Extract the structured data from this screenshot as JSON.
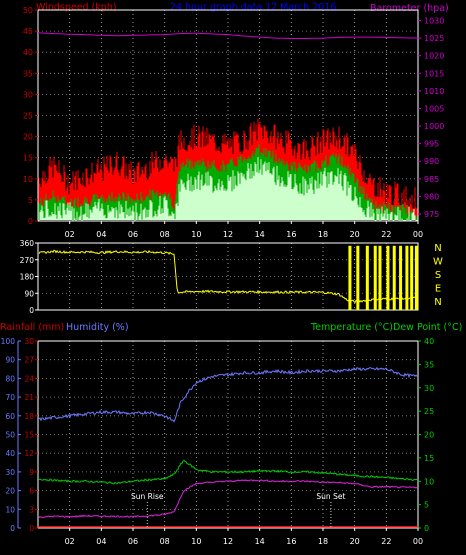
{
  "colors": {
    "wind_gust": "#ff0000",
    "wind_avg": "#00aa00",
    "wind_min": "#ccffcc",
    "baro": "#cc00cc",
    "wind_axis": "#cc0000",
    "baro_axis": "#cc00cc",
    "title": "#0000ff",
    "dir": "#ffff00",
    "humidity": "#6e78ff",
    "temp": "#00cc00",
    "dew": "#dd22dd",
    "rain": "#ff2222",
    "rain_axis": "#cc0000",
    "hum_axis": "#6e78ff",
    "temp_axis": "#00cc00",
    "white": "#ffffff"
  },
  "chart_data": [
    {
      "type": "line",
      "title": "24 hour graph data  12 March 2016",
      "ylabel_left": "Windspeed (kph)",
      "ylabel_right": "Barometer (hpa)",
      "x_ticks": [
        "02",
        "04",
        "06",
        "08",
        "10",
        "12",
        "14",
        "16",
        "18",
        "20",
        "22",
        "00"
      ],
      "x_range_hours": [
        0,
        24
      ],
      "y_left_ticks": [
        "0",
        "5",
        "10",
        "15",
        "20",
        "25",
        "30",
        "35",
        "40",
        "45",
        "50"
      ],
      "y_left_range": [
        0,
        50
      ],
      "y_right_ticks": [
        "975",
        "980",
        "985",
        "990",
        "995",
        "1000",
        "1005",
        "1010",
        "1015",
        "1020",
        "1025",
        "1030"
      ],
      "y_right_range": [
        973,
        1033
      ],
      "series": [
        {
          "key": "baro",
          "axis": "right",
          "x": [
            0,
            1,
            2,
            3,
            4,
            5,
            6,
            7,
            8,
            9,
            10,
            11,
            12,
            13,
            14,
            15,
            16,
            17,
            18,
            19,
            20,
            21,
            22,
            23,
            24
          ],
          "y": [
            1026.5,
            1026.3,
            1026.1,
            1026.0,
            1025.8,
            1025.7,
            1025.8,
            1025.9,
            1026.0,
            1026.3,
            1026.4,
            1026.2,
            1026.0,
            1025.6,
            1025.3,
            1025.0,
            1024.9,
            1024.9,
            1025.0,
            1025.2,
            1025.3,
            1025.3,
            1025.2,
            1025.1,
            1025.0
          ]
        },
        {
          "key": "wind_gust",
          "axis": "left",
          "x": [
            0,
            1,
            2,
            3,
            4,
            5,
            6,
            7,
            8,
            8.6,
            9,
            10,
            11,
            12,
            13,
            14,
            15,
            16,
            17,
            18,
            19,
            20,
            21,
            22,
            23,
            24
          ],
          "y": [
            10,
            13,
            9,
            11,
            12,
            14,
            11,
            13,
            15,
            13,
            19,
            20,
            19,
            18,
            19,
            22,
            20,
            18,
            17,
            19,
            20,
            16,
            9,
            7,
            6,
            5
          ]
        },
        {
          "key": "wind_avg",
          "axis": "left",
          "x": [
            0,
            1,
            2,
            3,
            4,
            5,
            6,
            7,
            8,
            8.6,
            9,
            10,
            11,
            12,
            13,
            14,
            15,
            16,
            17,
            18,
            19,
            20,
            21,
            22,
            23,
            24
          ],
          "y": [
            4,
            6,
            4,
            5,
            5,
            6,
            5,
            6,
            7,
            4,
            13,
            14,
            13,
            13,
            15,
            17,
            15,
            13,
            12,
            14,
            15,
            10,
            4,
            3,
            3,
            2
          ]
        },
        {
          "key": "wind_min",
          "axis": "left",
          "x": [
            0,
            1,
            2,
            3,
            4,
            5,
            6,
            7,
            8,
            8.6,
            9,
            10,
            11,
            12,
            13,
            14,
            15,
            16,
            17,
            18,
            19,
            20,
            21,
            22,
            23,
            24
          ],
          "y": [
            2,
            3,
            2,
            2,
            3,
            3,
            2,
            3,
            4,
            2,
            8,
            10,
            9,
            9,
            11,
            13,
            11,
            9,
            8,
            10,
            11,
            6,
            2,
            1,
            1,
            1
          ]
        }
      ]
    },
    {
      "type": "line",
      "x_ticks": [
        "02",
        "04",
        "06",
        "08",
        "10",
        "12",
        "14",
        "16",
        "18",
        "20",
        "22",
        "00"
      ],
      "y_left_ticks": [
        "0",
        "90",
        "180",
        "270",
        "360"
      ],
      "y_left_range": [
        0,
        360
      ],
      "y_right_labels": [
        "N",
        "W",
        "S",
        "E",
        "N"
      ],
      "series": [
        {
          "key": "dir",
          "x": [
            0,
            1,
            2,
            3,
            4,
            5,
            6,
            7,
            8,
            8.6,
            8.8,
            10,
            12,
            14,
            16,
            18,
            19,
            19.5,
            20,
            21,
            22,
            23,
            24
          ],
          "y": [
            305,
            315,
            310,
            312,
            308,
            314,
            310,
            312,
            308,
            300,
            95,
            100,
            98,
            97,
            96,
            95,
            85,
            55,
            45,
            55,
            60,
            60,
            65
          ]
        }
      ]
    },
    {
      "type": "line",
      "ylabel_rain": "Rainfall (mm)",
      "ylabel_humidity": "Humidity (%)",
      "ylabel_temp": "Temperature (°C)",
      "ylabel_dew": "Dew Point (°C)",
      "x_ticks": [
        "02",
        "04",
        "06",
        "08",
        "10",
        "12",
        "14",
        "16",
        "18",
        "20",
        "22",
        "00"
      ],
      "y_hum_ticks": [
        "0",
        "10",
        "20",
        "30",
        "40",
        "50",
        "60",
        "70",
        "80",
        "90",
        "100"
      ],
      "y_hum_range": [
        0,
        100
      ],
      "y_rain_ticks": [
        "0",
        "3",
        "6",
        "9",
        "12",
        "15",
        "18",
        "21",
        "24",
        "27",
        "30"
      ],
      "y_rain_range": [
        0,
        30
      ],
      "y_temp_ticks": [
        "0",
        "5",
        "10",
        "15",
        "20",
        "25",
        "30",
        "35",
        "40"
      ],
      "y_temp_range": [
        0,
        40
      ],
      "annotations": [
        {
          "label": "Sun Rise",
          "x": 6.9
        },
        {
          "label": "Sun Set",
          "x": 18.5
        }
      ],
      "series": [
        {
          "key": "humidity",
          "axis": "hum",
          "x": [
            0,
            1,
            2,
            3,
            4,
            5,
            6,
            7,
            8,
            8.6,
            9,
            9.5,
            10,
            11,
            12,
            13,
            14,
            15,
            16,
            17,
            18,
            19,
            20,
            21,
            22,
            23,
            24
          ],
          "y": [
            58,
            59,
            60,
            61,
            62,
            62,
            61,
            62,
            60,
            57,
            67,
            73,
            78,
            81,
            82,
            83,
            83,
            84,
            83,
            84,
            84,
            84,
            85,
            85,
            85,
            82,
            81
          ]
        },
        {
          "key": "temp",
          "axis": "temp",
          "x": [
            0,
            1,
            2,
            3,
            4,
            5,
            6,
            7,
            8,
            8.6,
            9.2,
            10,
            11,
            12,
            13,
            14,
            15,
            16,
            17,
            18,
            19,
            20,
            21,
            22,
            23,
            24
          ],
          "y": [
            10.5,
            10.2,
            10.0,
            10.0,
            9.8,
            9.6,
            10.0,
            10.3,
            10.5,
            11.5,
            14.5,
            12.5,
            12.0,
            12.0,
            12.0,
            12.2,
            12.2,
            12.0,
            12.0,
            11.8,
            11.5,
            11.2,
            11.0,
            10.8,
            10.5,
            10.3
          ]
        },
        {
          "key": "dew",
          "axis": "temp",
          "x": [
            0,
            1,
            2,
            3,
            4,
            5,
            6,
            7,
            8,
            8.6,
            9.2,
            10,
            11,
            12,
            13,
            14,
            15,
            16,
            17,
            18,
            19,
            20,
            21,
            22,
            23,
            24
          ],
          "y": [
            2.3,
            2.5,
            2.4,
            2.6,
            2.5,
            2.5,
            2.4,
            2.6,
            2.9,
            3.5,
            8.0,
            9.5,
            9.8,
            10.0,
            10.2,
            10.2,
            10.0,
            10.0,
            10.0,
            9.8,
            9.7,
            9.5,
            8.8,
            8.8,
            8.7,
            8.7
          ]
        },
        {
          "key": "rain",
          "axis": "rain",
          "x": [
            0,
            24
          ],
          "y": [
            0,
            0
          ]
        }
      ]
    }
  ]
}
